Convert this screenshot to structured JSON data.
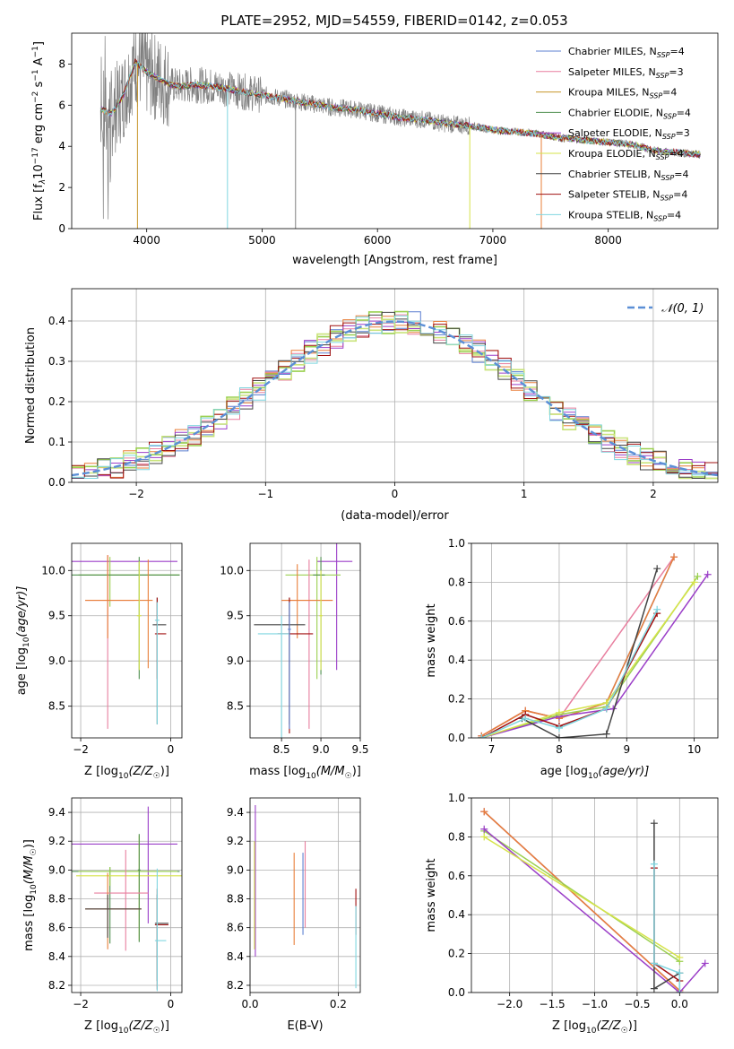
{
  "figure": {
    "title": "PLATE=2952, MJD=54559, FIBERID=0142, z=0.053"
  },
  "colors": {
    "Chabrier MILES": "#5b7fd0",
    "Salpeter MILES": "#e87f9f",
    "Kroupa MILES": "#c8962a",
    "Chabrier ELODIE": "#4f8f4f",
    "Salpeter ELODIE": "#9b3fc8",
    "Kroupa ELODIE": "#d6e34a",
    "Chabrier STELIB": "#444444",
    "Salpeter STELIB": "#a01010",
    "Kroupa STELIB": "#7fd6e0",
    "data": "#808080",
    "orange": "#e87f3a",
    "green": "#9bd050",
    "normal": "#5b8fd6"
  },
  "chart_data": [
    {
      "id": "spectrum",
      "type": "line",
      "title": "PLATE=2952, MJD=54559, FIBERID=0142, z=0.053",
      "xlabel": "wavelength [Angstrom, rest frame]",
      "ylabel_main": "Flux [f",
      "ylabel_sub": "λ",
      "ylabel_rest": "10",
      "ylabel_exp1": "−17",
      "ylabel_unit": " erg cm",
      "ylabel_exp2": "−2",
      "ylabel_s": " s",
      "ylabel_exp3": "−1",
      "ylabel_end": " A",
      "ylabel_exp4": "−1",
      "ylabel_close": "]",
      "xlim": [
        3350,
        8950
      ],
      "ylim": [
        0,
        9.5
      ],
      "xticks": [
        4000,
        5000,
        6000,
        7000,
        8000
      ],
      "xtick_labels": [
        "4000",
        "5000",
        "6000",
        "7000",
        "8000"
      ],
      "yticks": [
        0,
        2,
        4,
        6,
        8
      ],
      "ytick_labels": [
        "0",
        "2",
        "4",
        "6",
        "8"
      ],
      "legend_position": "top-right",
      "legend": [
        {
          "name": "Chabrier MILES",
          "nssp": "4"
        },
        {
          "name": "Salpeter MILES",
          "nssp": "3"
        },
        {
          "name": "Kroupa MILES",
          "nssp": "4"
        },
        {
          "name": "Chabrier ELODIE",
          "nssp": "4"
        },
        {
          "name": "Salpeter ELODIE",
          "nssp": "3"
        },
        {
          "name": "Kroupa ELODIE",
          "nssp": "4"
        },
        {
          "name": "Chabrier STELIB",
          "nssp": "4"
        },
        {
          "name": "Salpeter STELIB",
          "nssp": "4"
        },
        {
          "name": "Kroupa STELIB",
          "nssp": "4"
        }
      ],
      "legend_nssp_label": "N",
      "legend_nssp_sub": "SSP",
      "model_continuum": {
        "x": [
          3600,
          3700,
          3800,
          3900,
          4000,
          4100,
          4200,
          4300,
          4400,
          4600,
          4800,
          5000,
          5200,
          5400,
          5600,
          5800,
          6000,
          6200,
          6400,
          6600,
          6800,
          7000,
          7200,
          7400,
          7600,
          7800,
          8000,
          8200,
          8400,
          8600,
          8800
        ],
        "y": [
          5.8,
          5.6,
          6.5,
          8.1,
          7.6,
          7.3,
          7.0,
          6.9,
          7.0,
          6.9,
          6.7,
          6.5,
          6.3,
          6.1,
          5.9,
          5.8,
          5.6,
          5.4,
          5.3,
          5.1,
          5.0,
          4.8,
          4.7,
          4.6,
          4.4,
          4.3,
          4.2,
          4.1,
          3.8,
          3.7,
          3.6
        ]
      }
    },
    {
      "id": "residual-histogram",
      "type": "line",
      "xlabel": "(data-model)/error",
      "ylabel": "Normed distribution",
      "xlim": [
        -2.5,
        2.5
      ],
      "ylim": [
        0,
        0.48
      ],
      "xticks": [
        -2,
        -1,
        0,
        1,
        2
      ],
      "xtick_labels": [
        "−2",
        "−1",
        "0",
        "1",
        "2"
      ],
      "yticks": [
        0,
        0.1,
        0.2,
        0.3,
        0.4
      ],
      "ytick_labels": [
        "0.0",
        "0.1",
        "0.2",
        "0.3",
        "0.4"
      ],
      "grid": true,
      "legend_position": "top-right",
      "normal_label": "𝒩(0, 1)",
      "bin_edges_start": -2.5,
      "bin_width": 0.1
    },
    {
      "id": "age-vs-Z",
      "type": "scatter",
      "xlabel": "Z [log",
      "xlabel_sub": "10",
      "xlabel_rest": "(Z/Z",
      "xlabel_sun": "☉",
      "xlabel_end": ")]",
      "ylabel": "age  [log",
      "ylabel_sub": "10",
      "ylabel_rest": "(age/yr)]",
      "xlim": [
        -2.2,
        0.25
      ],
      "ylim": [
        8.15,
        10.3
      ],
      "xticks": [
        -2,
        0
      ],
      "xtick_labels": [
        "−2",
        "0"
      ],
      "yticks": [
        8.5,
        9.0,
        9.5,
        10.0
      ],
      "ytick_labels": [
        "8.5",
        "9.0",
        "9.5",
        "10.0"
      ],
      "grid": true
    },
    {
      "id": "age-vs-mass",
      "type": "scatter",
      "xlabel": "mass [log",
      "xlabel_sub": "10",
      "xlabel_rest": "(M/M",
      "xlabel_sun": "☉",
      "xlabel_end": ")]",
      "xlim": [
        8.1,
        9.5
      ],
      "ylim": [
        8.15,
        10.3
      ],
      "xticks": [
        8.5,
        9.0,
        9.5
      ],
      "xtick_labels": [
        "8.5",
        "9.0",
        "9.5"
      ],
      "yticks": [
        8.5,
        9.0,
        9.5,
        10.0
      ],
      "ytick_labels": [
        "8.5",
        "9.0",
        "9.5",
        "10.0"
      ],
      "grid": true
    },
    {
      "id": "weight-vs-age",
      "type": "line",
      "xlabel": "age  [log",
      "xlabel_sub": "10",
      "xlabel_rest": "(age/yr)]",
      "ylabel": "mass weight",
      "xlim": [
        6.7,
        10.35
      ],
      "ylim": [
        0,
        1.0
      ],
      "xticks": [
        7,
        8,
        9,
        10
      ],
      "xtick_labels": [
        "7",
        "8",
        "9",
        "10"
      ],
      "yticks": [
        0,
        0.2,
        0.4,
        0.6,
        0.8,
        1.0
      ],
      "ytick_labels": [
        "0.0",
        "0.2",
        "0.4",
        "0.6",
        "0.8",
        "1.0"
      ],
      "grid": true,
      "series": [
        {
          "model": "Chabrier MILES",
          "x": [
            6.85,
            7.5,
            8.0,
            8.7,
            9.7
          ],
          "y": [
            0.01,
            0.14,
            0.1,
            0.18,
            0.93
          ]
        },
        {
          "model": "Salpeter MILES",
          "x": [
            6.85,
            7.5,
            8.0,
            9.7
          ],
          "y": [
            0.01,
            0.14,
            0.1,
            0.93
          ]
        },
        {
          "model": "Kroupa MILES",
          "x": [
            6.85,
            7.5,
            8.0,
            8.7,
            9.7
          ],
          "y": [
            0.01,
            0.14,
            0.1,
            0.18,
            0.93
          ]
        },
        {
          "model": "Chabrier ELODIE",
          "x": [
            6.85,
            8.0,
            8.7,
            10.05
          ],
          "y": [
            0.0,
            0.12,
            0.16,
            0.83
          ]
        },
        {
          "model": "Salpeter ELODIE",
          "x": [
            6.85,
            8.0,
            8.8,
            10.2
          ],
          "y": [
            0.0,
            0.11,
            0.15,
            0.84
          ]
        },
        {
          "model": "Kroupa ELODIE",
          "x": [
            6.85,
            8.0,
            8.7,
            10.0
          ],
          "y": [
            0.0,
            0.13,
            0.18,
            0.8
          ]
        },
        {
          "model": "Chabrier STELIB",
          "x": [
            7.45,
            8.0,
            8.7,
            9.45
          ],
          "y": [
            0.1,
            0.0,
            0.02,
            0.87
          ]
        },
        {
          "model": "Salpeter STELIB",
          "x": [
            6.85,
            7.5,
            8.0,
            8.7,
            9.45
          ],
          "y": [
            0.0,
            0.12,
            0.06,
            0.15,
            0.64
          ]
        },
        {
          "model": "Kroupa STELIB",
          "x": [
            6.85,
            7.5,
            8.0,
            8.7,
            9.45
          ],
          "y": [
            0.0,
            0.1,
            0.05,
            0.15,
            0.66
          ]
        }
      ]
    },
    {
      "id": "mass-vs-Z",
      "type": "scatter",
      "xlabel": "Z [log",
      "xlabel_sub": "10",
      "xlabel_rest": "(Z/Z",
      "xlabel_sun": "☉",
      "xlabel_end": ")]",
      "ylabel": "mass [log",
      "ylabel_sub": "10",
      "ylabel_rest": "(M/M",
      "ylabel_sun": "☉",
      "ylabel_end": ")]",
      "xlim": [
        -2.2,
        0.25
      ],
      "ylim": [
        8.15,
        9.5
      ],
      "xticks": [
        -2,
        0
      ],
      "xtick_labels": [
        "−2",
        "0"
      ],
      "yticks": [
        8.2,
        8.4,
        8.6,
        8.8,
        9.0,
        9.2,
        9.4
      ],
      "ytick_labels": [
        "8.2",
        "8.4",
        "8.6",
        "8.8",
        "9.0",
        "9.2",
        "9.4"
      ],
      "grid": true
    },
    {
      "id": "mass-vs-EBV",
      "type": "scatter",
      "xlabel": "E(B-V)",
      "xlim": [
        0,
        0.25
      ],
      "ylim": [
        8.15,
        9.5
      ],
      "xticks": [
        0,
        0.2
      ],
      "xtick_labels": [
        "0.0",
        "0.2"
      ],
      "yticks": [
        8.2,
        8.4,
        8.6,
        8.8,
        9.0,
        9.2,
        9.4
      ],
      "ytick_labels": [
        "8.2",
        "8.4",
        "8.6",
        "8.8",
        "9.0",
        "9.2",
        "9.4"
      ],
      "grid": true
    },
    {
      "id": "weight-vs-Z",
      "type": "line",
      "xlabel": "Z [log",
      "xlabel_sub": "10",
      "xlabel_rest": "(Z/Z",
      "xlabel_sun": "☉",
      "xlabel_end": ")]",
      "ylabel": "mass weight",
      "xlim": [
        -2.45,
        0.45
      ],
      "ylim": [
        0,
        1.0
      ],
      "xticks": [
        -2.0,
        -1.5,
        -1.0,
        -0.5,
        0.0
      ],
      "xtick_labels": [
        "−2.0",
        "−1.5",
        "−1.0",
        "−0.5",
        "0.0"
      ],
      "yticks": [
        0,
        0.2,
        0.4,
        0.6,
        0.8,
        1.0
      ],
      "ytick_labels": [
        "0.0",
        "0.2",
        "0.4",
        "0.6",
        "0.8",
        "1.0"
      ],
      "grid": true,
      "series": [
        {
          "model": "Chabrier MILES",
          "x": [
            -2.3,
            0.0
          ],
          "y": [
            0.93,
            0.01
          ]
        },
        {
          "model": "Salpeter MILES",
          "x": [
            -2.3,
            0.0
          ],
          "y": [
            0.93,
            0.01
          ]
        },
        {
          "model": "Kroupa MILES",
          "x": [
            -2.3,
            0.0
          ],
          "y": [
            0.93,
            0.01
          ]
        },
        {
          "model": "Chabrier ELODIE",
          "x": [
            -2.3,
            0.0
          ],
          "y": [
            0.83,
            0.16
          ]
        },
        {
          "model": "Salpeter ELODIE",
          "x": [
            -2.3,
            0.0,
            0.3
          ],
          "y": [
            0.84,
            0.0,
            0.15
          ]
        },
        {
          "model": "Kroupa ELODIE",
          "x": [
            -2.3,
            0.0
          ],
          "y": [
            0.8,
            0.18
          ]
        },
        {
          "model": "Chabrier STELIB",
          "x": [
            -0.3,
            -0.3,
            0.0,
            0.0
          ],
          "y": [
            0.87,
            0.02,
            0.1,
            0.0
          ]
        },
        {
          "model": "Salpeter STELIB",
          "x": [
            -0.3,
            -0.3,
            0.0
          ],
          "y": [
            0.64,
            0.15,
            0.06
          ]
        },
        {
          "model": "Kroupa STELIB",
          "x": [
            -0.3,
            -0.3,
            0.0,
            0.0
          ],
          "y": [
            0.66,
            0.15,
            0.1,
            0.0
          ]
        }
      ]
    }
  ]
}
